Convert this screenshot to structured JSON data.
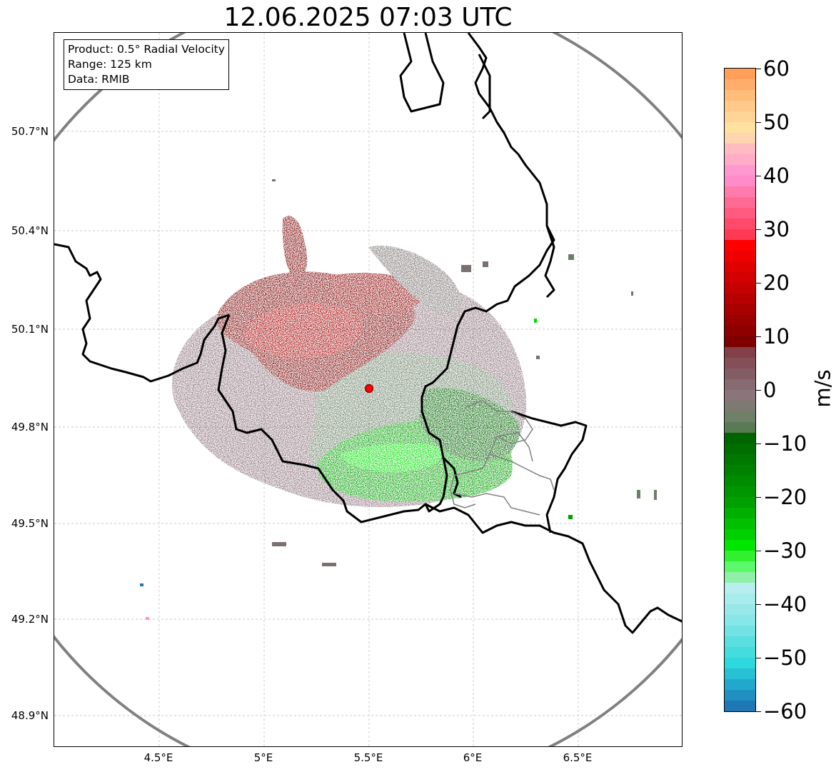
{
  "map": {
    "title": "12.06.2025 07:03 UTC",
    "info": {
      "product": "Product: 0.5° Radial Velocity",
      "range": "Range: 125 km",
      "source": "Data: RMIB"
    },
    "lat_labels": [
      "50.7°N",
      "50.4°N",
      "50.1°N",
      "49.8°N",
      "49.5°N",
      "49.2°N",
      "48.9°N"
    ],
    "lon_labels": [
      "4.5°E",
      "5°E",
      "5.5°E",
      "6°E",
      "6.5°E"
    ],
    "radar_site": "radar-station",
    "range_ring_color": "#808080",
    "border_color": "#000000",
    "region_border_color": "#808080",
    "grid_color": "#bbbbbb"
  },
  "colorbar": {
    "unit": "m/s",
    "labels": [
      "60",
      "50",
      "40",
      "30",
      "20",
      "10",
      "0",
      "−10",
      "−20",
      "−30",
      "−40",
      "−50",
      "−60"
    ],
    "colors": {
      "approaching_fast": "#1f77b4",
      "cyan": "#2fd8dd",
      "light_cyan": "#b4ecef",
      "light_green": "#90f0a8",
      "bright_green": "#00e000",
      "green": "#00a000",
      "dark_green": "#006400",
      "gray_green": "#6b7f66",
      "gray_mauve": "#8a7079",
      "mauve": "#7a3f48",
      "dark_red": "#7a0000",
      "red": "#cc0000",
      "bright_red": "#ff0000",
      "pink_red": "#ff5a70",
      "pink": "#ff8fcf",
      "light_pink": "#ffb5c0",
      "light_orange": "#ffe0a0",
      "orange": "#ffa060"
    }
  }
}
